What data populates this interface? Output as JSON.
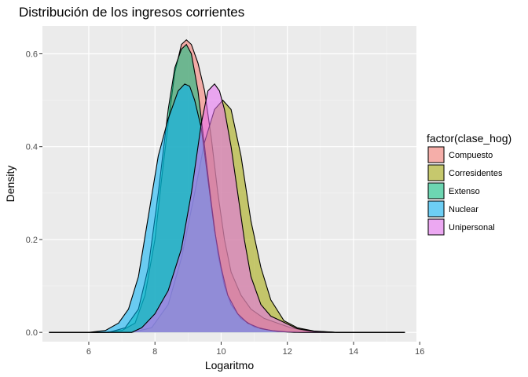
{
  "chart_data": {
    "type": "area",
    "title": "Distribución de los ingresos corrientes",
    "xlabel": "Logaritmo",
    "ylabel": "Density",
    "xlim": [
      4.6,
      15.9
    ],
    "ylim": [
      -0.02,
      0.66
    ],
    "x_ticks": [
      6,
      8,
      10,
      12,
      14,
      16
    ],
    "y_ticks": [
      0.0,
      0.2,
      0.4,
      0.6
    ],
    "y_tick_labels": [
      "0.0",
      "0.2",
      "0.4",
      "0.6"
    ],
    "grid": true,
    "legend": {
      "title": "factor(clase_hog)",
      "position": "right"
    },
    "series": [
      {
        "name": "Compuesto",
        "color": "#F8766D",
        "points": [
          [
            4.8,
            0.0
          ],
          [
            6.5,
            0.0
          ],
          [
            7.0,
            0.004
          ],
          [
            7.4,
            0.02
          ],
          [
            7.7,
            0.08
          ],
          [
            8.0,
            0.2
          ],
          [
            8.2,
            0.33
          ],
          [
            8.4,
            0.45
          ],
          [
            8.6,
            0.56
          ],
          [
            8.8,
            0.62
          ],
          [
            8.95,
            0.63
          ],
          [
            9.1,
            0.62
          ],
          [
            9.3,
            0.58
          ],
          [
            9.5,
            0.52
          ],
          [
            9.7,
            0.42
          ],
          [
            9.9,
            0.3
          ],
          [
            10.1,
            0.2
          ],
          [
            10.3,
            0.13
          ],
          [
            10.6,
            0.08
          ],
          [
            10.9,
            0.05
          ],
          [
            11.3,
            0.03
          ],
          [
            11.7,
            0.02
          ],
          [
            12.1,
            0.01
          ],
          [
            12.6,
            0.003
          ],
          [
            13.5,
            0.0
          ],
          [
            15.55,
            0.0
          ]
        ]
      },
      {
        "name": "Corresidentes",
        "color": "#A3A500",
        "points": [
          [
            4.8,
            0.0
          ],
          [
            7.3,
            0.0
          ],
          [
            7.9,
            0.01
          ],
          [
            8.4,
            0.06
          ],
          [
            8.8,
            0.16
          ],
          [
            9.2,
            0.3
          ],
          [
            9.5,
            0.41
          ],
          [
            9.8,
            0.48
          ],
          [
            10.05,
            0.5
          ],
          [
            10.3,
            0.48
          ],
          [
            10.6,
            0.38
          ],
          [
            10.9,
            0.24
          ],
          [
            11.2,
            0.14
          ],
          [
            11.5,
            0.07
          ],
          [
            11.9,
            0.025
          ],
          [
            12.3,
            0.01
          ],
          [
            12.8,
            0.003
          ],
          [
            13.5,
            0.0
          ],
          [
            15.55,
            0.0
          ]
        ]
      },
      {
        "name": "Extenso",
        "color": "#00BF7D",
        "points": [
          [
            4.8,
            0.0
          ],
          [
            6.6,
            0.0
          ],
          [
            7.1,
            0.01
          ],
          [
            7.5,
            0.05
          ],
          [
            7.8,
            0.14
          ],
          [
            8.1,
            0.3
          ],
          [
            8.4,
            0.48
          ],
          [
            8.6,
            0.57
          ],
          [
            8.8,
            0.61
          ],
          [
            8.95,
            0.62
          ],
          [
            9.1,
            0.6
          ],
          [
            9.3,
            0.52
          ],
          [
            9.5,
            0.4
          ],
          [
            9.7,
            0.28
          ],
          [
            9.9,
            0.17
          ],
          [
            10.1,
            0.1
          ],
          [
            10.3,
            0.06
          ],
          [
            10.6,
            0.03
          ],
          [
            11.0,
            0.012
          ],
          [
            11.5,
            0.004
          ],
          [
            12.0,
            0.001
          ],
          [
            12.5,
            0.0
          ],
          [
            15.55,
            0.0
          ]
        ]
      },
      {
        "name": "Nuclear",
        "color": "#00B0F6",
        "points": [
          [
            4.8,
            0.0
          ],
          [
            6.0,
            0.0
          ],
          [
            6.5,
            0.004
          ],
          [
            6.9,
            0.02
          ],
          [
            7.2,
            0.05
          ],
          [
            7.5,
            0.12
          ],
          [
            7.8,
            0.25
          ],
          [
            8.1,
            0.38
          ],
          [
            8.4,
            0.46
          ],
          [
            8.7,
            0.52
          ],
          [
            8.9,
            0.535
          ],
          [
            9.05,
            0.53
          ],
          [
            9.2,
            0.5
          ],
          [
            9.4,
            0.44
          ],
          [
            9.6,
            0.33
          ],
          [
            9.8,
            0.22
          ],
          [
            10.0,
            0.14
          ],
          [
            10.2,
            0.08
          ],
          [
            10.5,
            0.04
          ],
          [
            10.8,
            0.02
          ],
          [
            11.2,
            0.008
          ],
          [
            11.7,
            0.002
          ],
          [
            12.2,
            0.0
          ],
          [
            15.55,
            0.0
          ]
        ]
      },
      {
        "name": "Unipersonal",
        "color": "#E76BF3",
        "points": [
          [
            4.8,
            0.0
          ],
          [
            7.3,
            0.0
          ],
          [
            7.6,
            0.01
          ],
          [
            8.0,
            0.04
          ],
          [
            8.4,
            0.09
          ],
          [
            8.8,
            0.18
          ],
          [
            9.1,
            0.3
          ],
          [
            9.4,
            0.45
          ],
          [
            9.6,
            0.52
          ],
          [
            9.8,
            0.535
          ],
          [
            9.95,
            0.52
          ],
          [
            10.1,
            0.48
          ],
          [
            10.3,
            0.4
          ],
          [
            10.5,
            0.3
          ],
          [
            10.7,
            0.2
          ],
          [
            10.9,
            0.12
          ],
          [
            11.2,
            0.06
          ],
          [
            11.5,
            0.035
          ],
          [
            11.8,
            0.025
          ],
          [
            12.0,
            0.018
          ],
          [
            12.3,
            0.008
          ],
          [
            12.8,
            0.002
          ],
          [
            13.5,
            0.0
          ],
          [
            15.55,
            0.0
          ]
        ]
      }
    ],
    "fill_alpha": 0.55
  }
}
